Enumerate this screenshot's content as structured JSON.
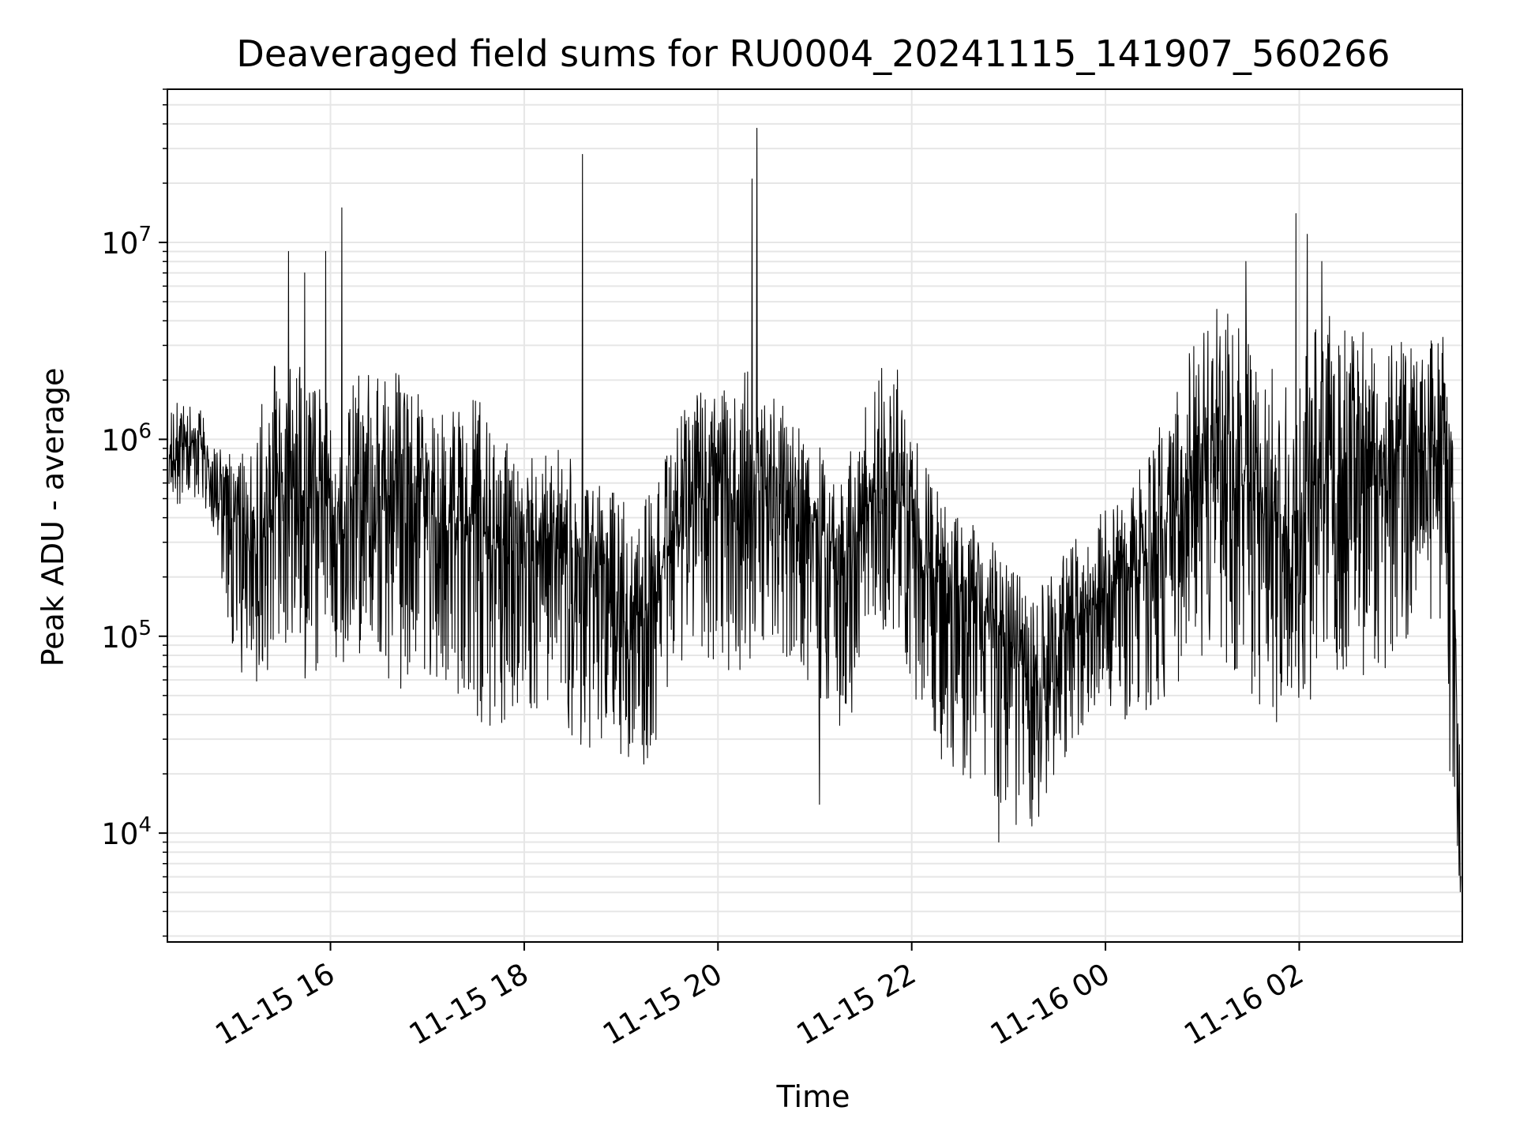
{
  "chart_data": {
    "type": "line",
    "title": "Deaveraged field sums for RU0004_20241115_141907_560266",
    "xlabel": "Time",
    "ylabel": "Peak ADU - average",
    "yscale": "log",
    "grid": true,
    "legend": "none",
    "xlim": [
      "2024-11-15T14:19:00",
      "2024-11-16T03:41:00"
    ],
    "ylim": [
      2800,
      60000000
    ],
    "x_ticks": [
      {
        "label": "11-15 16",
        "time": "2024-11-15T16:00:00"
      },
      {
        "label": "11-15 18",
        "time": "2024-11-15T18:00:00"
      },
      {
        "label": "11-15 20",
        "time": "2024-11-15T20:00:00"
      },
      {
        "label": "11-15 22",
        "time": "2024-11-15T22:00:00"
      },
      {
        "label": "11-16 00",
        "time": "2024-11-16T00:00:00"
      },
      {
        "label": "11-16 02",
        "time": "2024-11-16T02:00:00"
      }
    ],
    "y_ticks": [
      {
        "base": "10",
        "exp": "4",
        "value": 10000
      },
      {
        "base": "10",
        "exp": "5",
        "value": 100000
      },
      {
        "base": "10",
        "exp": "6",
        "value": 1000000
      },
      {
        "base": "10",
        "exp": "7",
        "value": 10000000
      }
    ],
    "line_color": "#000000",
    "grid_color": "#e6e6e6",
    "series": [
      {
        "x": [
          "2024-11-15T14:20:00",
          "2024-11-15T14:30:00",
          "2024-11-15T14:40:00",
          "2024-11-15T14:50:00",
          "2024-11-15T15:00:00",
          "2024-11-15T15:10:00",
          "2024-11-15T15:20:00",
          "2024-11-15T15:30:00",
          "2024-11-15T15:40:00",
          "2024-11-15T15:50:00",
          "2024-11-15T16:00:00",
          "2024-11-15T16:10:00",
          "2024-11-15T16:20:00",
          "2024-11-15T16:30:00",
          "2024-11-15T16:40:00",
          "2024-11-15T16:50:00",
          "2024-11-15T17:00:00",
          "2024-11-15T17:10:00",
          "2024-11-15T17:20:00",
          "2024-11-15T17:30:00",
          "2024-11-15T17:40:00",
          "2024-11-15T17:50:00",
          "2024-11-15T18:00:00",
          "2024-11-15T18:10:00",
          "2024-11-15T18:20:00",
          "2024-11-15T18:30:00",
          "2024-11-15T18:40:00",
          "2024-11-15T18:50:00",
          "2024-11-15T19:00:00",
          "2024-11-15T19:10:00",
          "2024-11-15T19:20:00",
          "2024-11-15T19:30:00",
          "2024-11-15T19:40:00",
          "2024-11-15T19:50:00",
          "2024-11-15T20:00:00",
          "2024-11-15T20:10:00",
          "2024-11-15T20:20:00",
          "2024-11-15T20:30:00",
          "2024-11-15T20:40:00",
          "2024-11-15T20:50:00",
          "2024-11-15T21:00:00",
          "2024-11-15T21:10:00",
          "2024-11-15T21:20:00",
          "2024-11-15T21:30:00",
          "2024-11-15T21:40:00",
          "2024-11-15T21:50:00",
          "2024-11-15T22:00:00",
          "2024-11-15T22:10:00",
          "2024-11-15T22:20:00",
          "2024-11-15T22:30:00",
          "2024-11-15T22:40:00",
          "2024-11-15T22:50:00",
          "2024-11-15T23:00:00",
          "2024-11-15T23:10:00",
          "2024-11-15T23:20:00",
          "2024-11-15T23:30:00",
          "2024-11-15T23:40:00",
          "2024-11-15T23:50:00",
          "2024-11-16T00:00:00",
          "2024-11-16T00:10:00",
          "2024-11-16T00:20:00",
          "2024-11-16T00:30:00",
          "2024-11-16T00:40:00",
          "2024-11-16T00:50:00",
          "2024-11-16T01:00:00",
          "2024-11-16T01:10:00",
          "2024-11-16T01:20:00",
          "2024-11-16T01:30:00",
          "2024-11-16T01:40:00",
          "2024-11-16T01:50:00",
          "2024-11-16T02:00:00",
          "2024-11-16T02:10:00",
          "2024-11-16T02:20:00",
          "2024-11-16T02:30:00",
          "2024-11-16T02:40:00",
          "2024-11-16T02:50:00",
          "2024-11-16T03:00:00",
          "2024-11-16T03:10:00",
          "2024-11-16T03:20:00",
          "2024-11-16T03:30:00",
          "2024-11-16T03:35:00",
          "2024-11-16T03:40:00"
        ],
        "median": [
          900000,
          1000000,
          900000,
          450000,
          400000,
          300000,
          350000,
          500000,
          500000,
          450000,
          400000,
          500000,
          500000,
          550000,
          500000,
          600000,
          450000,
          350000,
          400000,
          400000,
          300000,
          250000,
          300000,
          300000,
          350000,
          250000,
          250000,
          250000,
          120000,
          100000,
          150000,
          300000,
          450000,
          500000,
          600000,
          500000,
          600000,
          600000,
          550000,
          450000,
          400000,
          300000,
          250000,
          400000,
          600000,
          600000,
          350000,
          200000,
          200000,
          150000,
          150000,
          120000,
          100000,
          60000,
          60000,
          80000,
          120000,
          150000,
          180000,
          200000,
          250000,
          300000,
          400000,
          500000,
          700000,
          800000,
          750000,
          600000,
          500000,
          300000,
          400000,
          600000,
          700000,
          800000,
          900000,
          800000,
          850000,
          900000,
          800000,
          800000,
          500000,
          4500
        ],
        "high": [
          1500000,
          1600000,
          1400000,
          1000000,
          950000,
          800000,
          2500000,
          2500000,
          2500000,
          2000000,
          1500000,
          2500000,
          2500000,
          2200000,
          2500000,
          2000000,
          1500000,
          1500000,
          1500000,
          1800000,
          1200000,
          1000000,
          900000,
          800000,
          900000,
          800000,
          700000,
          600000,
          500000,
          400000,
          600000,
          1000000,
          1500000,
          1800000,
          2500000,
          2000000,
          2500000,
          2000000,
          1500000,
          1200000,
          1000000,
          800000,
          800000,
          1500000,
          2500000,
          2500000,
          1200000,
          700000,
          500000,
          400000,
          400000,
          350000,
          250000,
          200000,
          200000,
          250000,
          300000,
          400000,
          450000,
          500000,
          700000,
          1000000,
          1500000,
          2500000,
          4000000,
          5000000,
          4500000,
          3000000,
          2500000,
          2000000,
          2500000,
          4000000,
          4500000,
          4000000,
          3500000,
          3000000,
          3000000,
          3500000,
          3200000,
          3500000,
          1000000,
          30000
        ],
        "low": [
          400000,
          500000,
          500000,
          250000,
          70000,
          55000,
          60000,
          80000,
          60000,
          50000,
          80000,
          70000,
          80000,
          60000,
          50000,
          60000,
          60000,
          50000,
          50000,
          40000,
          30000,
          35000,
          35000,
          40000,
          45000,
          30000,
          25000,
          30000,
          20000,
          18000,
          25000,
          60000,
          80000,
          70000,
          60000,
          65000,
          70000,
          90000,
          80000,
          70000,
          40000,
          30000,
          30000,
          70000,
          100000,
          90000,
          40000,
          20000,
          20000,
          20000,
          18000,
          15000,
          10000,
          9000,
          12000,
          20000,
          25000,
          40000,
          50000,
          30000,
          40000,
          40000,
          50000,
          60000,
          70000,
          80000,
          60000,
          50000,
          40000,
          30000,
          40000,
          50000,
          70000,
          60000,
          50000,
          60000,
          80000,
          100000,
          120000,
          100000,
          8000,
          4000
        ],
        "spikes": [
          {
            "x": "2024-11-15T15:34:00",
            "y": 9000000
          },
          {
            "x": "2024-11-15T15:44:00",
            "y": 7000000
          },
          {
            "x": "2024-11-15T15:57:00",
            "y": 9000000
          },
          {
            "x": "2024-11-15T16:07:00",
            "y": 15000000
          },
          {
            "x": "2024-11-15T18:36:00",
            "y": 28000000
          },
          {
            "x": "2024-11-15T20:21:00",
            "y": 21000000
          },
          {
            "x": "2024-11-15T20:24:00",
            "y": 38000000
          },
          {
            "x": "2024-11-15T21:03:00",
            "y": 14000
          },
          {
            "x": "2024-11-15T22:54:00",
            "y": 9000
          },
          {
            "x": "2024-11-16T01:27:00",
            "y": 8000000
          },
          {
            "x": "2024-11-16T01:58:00",
            "y": 14000000
          },
          {
            "x": "2024-11-16T02:05:00",
            "y": 11000000
          },
          {
            "x": "2024-11-16T02:14:00",
            "y": 8000000
          }
        ]
      }
    ]
  }
}
